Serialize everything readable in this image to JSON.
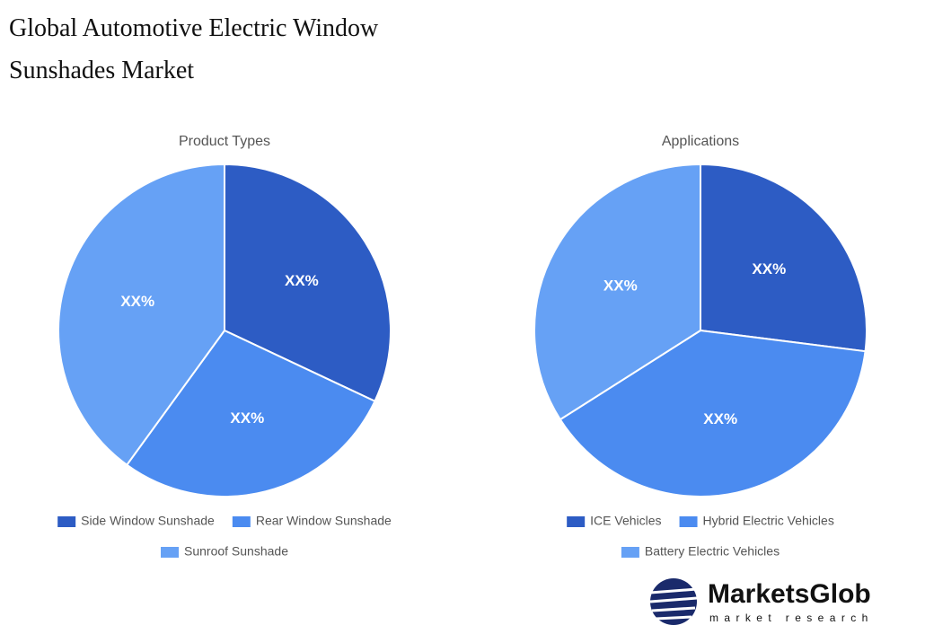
{
  "page_title": "Global Automotive Electric Window Sunshades Market",
  "chart_data": [
    {
      "type": "pie",
      "title": "Product Types",
      "categories": [
        "Side Window Sunshade",
        "Rear Window Sunshade",
        "Sunroof Sunshade"
      ],
      "values": [
        32,
        28,
        40
      ],
      "value_labels": [
        "XX%",
        "XX%",
        "XX%"
      ],
      "colors": [
        "#2d5cc4",
        "#4b8bf0",
        "#66a1f5"
      ]
    },
    {
      "type": "pie",
      "title": "Applications",
      "categories": [
        "ICE Vehicles",
        "Hybrid Electric Vehicles",
        "Battery Electric Vehicles"
      ],
      "values": [
        27,
        39,
        34
      ],
      "value_labels": [
        "XX%",
        "XX%",
        "XX%"
      ],
      "colors": [
        "#2d5cc4",
        "#4b8bf0",
        "#66a1f5"
      ]
    }
  ],
  "logo": {
    "name": "MarketsGlob",
    "tagline": "market research"
  }
}
